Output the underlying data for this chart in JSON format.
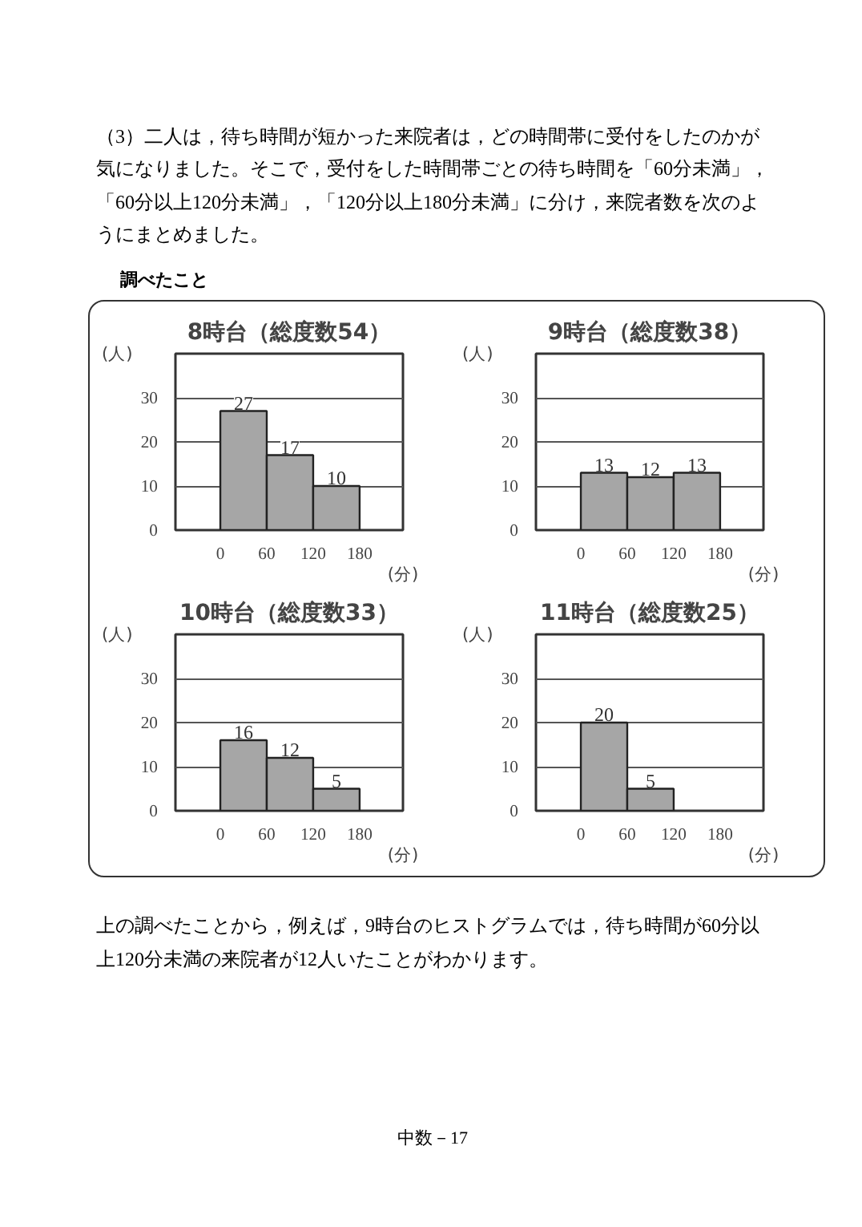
{
  "chart_data": [
    {
      "type": "histogram",
      "title": "8時台（総度数54）",
      "xlabel": "(分)",
      "ylabel": "(人)",
      "bins": [
        0,
        60,
        120,
        180
      ],
      "values": [
        27,
        17,
        10
      ],
      "color": "#a6a6a6",
      "value_labels": [
        "27",
        "17",
        "10"
      ],
      "xlim": [
        -58,
        236
      ],
      "ylim": [
        0,
        40
      ],
      "xticks": [
        0,
        60,
        120,
        180
      ],
      "yticks": [
        0,
        10,
        20,
        30
      ],
      "grid": "y",
      "annotations": [
        "（3）二人は，待ち時間が短かった来院者は，どの時間帯に受付をしたのかが気になりました。そこで，受付をした時間帯ごとの待ち時間を「60分未満」，「60分以上120分未満」，「120分以上180分未満」に分け，来院者数を次のようにまとめました。",
        "調べたこと"
      ]
    },
    {
      "type": "histogram",
      "title": "9時台（総度数38）",
      "xlabel": "(分)",
      "ylabel": "(人)",
      "bins": [
        0,
        60,
        120,
        180
      ],
      "values": [
        13,
        12,
        13
      ],
      "color": "#a6a6a6",
      "value_labels": [
        "13",
        "12",
        "13"
      ],
      "xlim": [
        -58,
        236
      ],
      "ylim": [
        0,
        40
      ],
      "xticks": [
        0,
        60,
        120,
        180
      ],
      "yticks": [
        0,
        10,
        20,
        30
      ],
      "grid": "y"
    },
    {
      "type": "histogram",
      "title": "10時台（総度数33）",
      "xlabel": "(分)",
      "ylabel": "(人)",
      "bins": [
        0,
        60,
        120,
        180
      ],
      "values": [
        16,
        12,
        5
      ],
      "color": "#a6a6a6",
      "value_labels": [
        "16",
        "12",
        "5"
      ],
      "xlim": [
        -58,
        236
      ],
      "ylim": [
        0,
        40
      ],
      "xticks": [
        0,
        60,
        120,
        180
      ],
      "yticks": [
        0,
        10,
        20,
        30
      ],
      "grid": "y"
    },
    {
      "type": "histogram",
      "title": "11時台（総度数25）",
      "xlabel": "(分)",
      "ylabel": "(人)",
      "bins": [
        0,
        60,
        120,
        180
      ],
      "values": [
        20,
        5,
        0
      ],
      "color": "#a6a6a6",
      "value_labels": [
        "20",
        "5",
        null
      ],
      "xlim": [
        -58,
        236
      ],
      "ylim": [
        0,
        40
      ],
      "xticks": [
        0,
        60,
        120,
        180
      ],
      "yticks": [
        0,
        10,
        20,
        30
      ],
      "grid": "y",
      "annotations": [
        "上の調べたことから，例えば，9時台のヒストグラムでは，待ち時間が60分以上120分未満の来院者が12人いたことがわかります。",
        "中数－17"
      ]
    }
  ]
}
